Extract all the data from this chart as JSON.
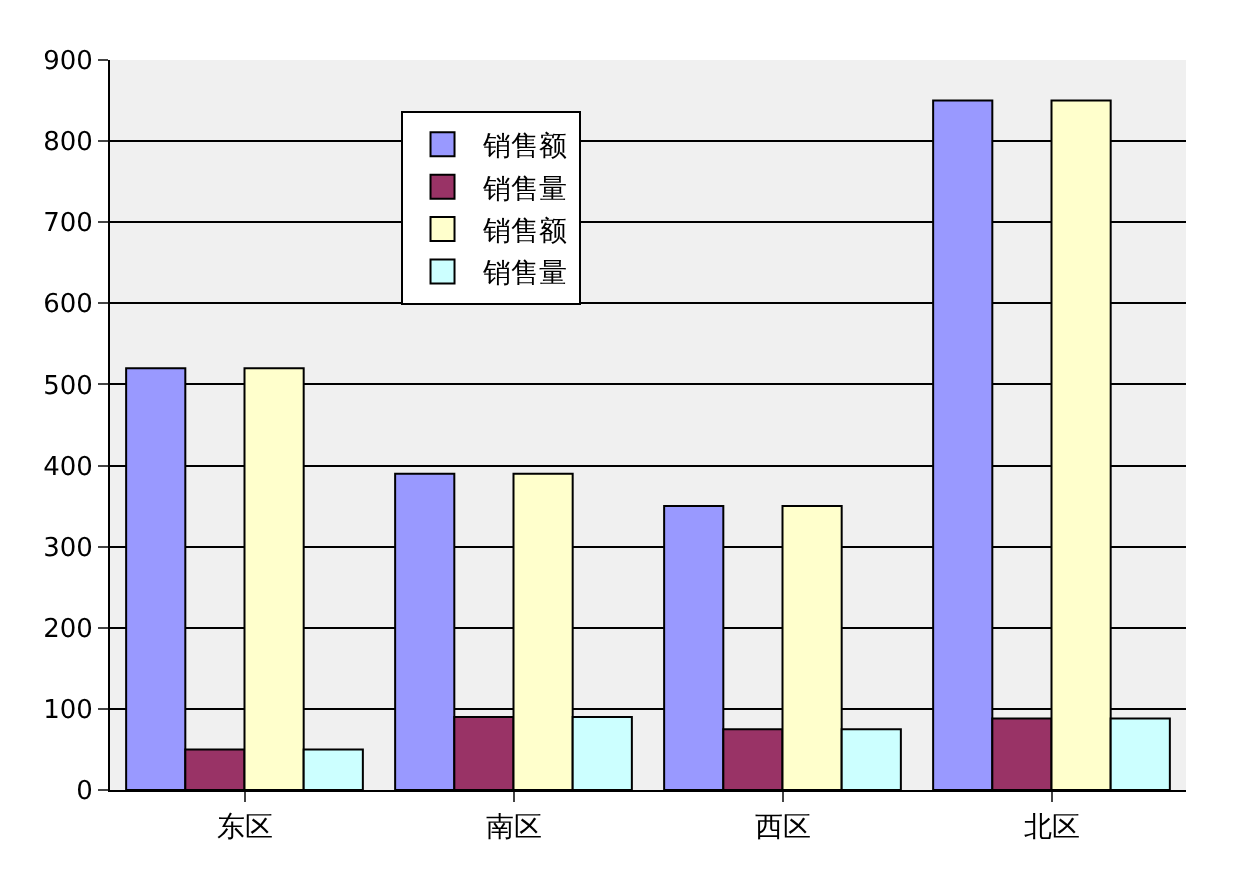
{
  "chart_data": {
    "type": "bar",
    "categories": [
      "东区",
      "南区",
      "西区",
      "北区"
    ],
    "series": [
      {
        "name": "销售额",
        "color": "#9999ff",
        "values": [
          520,
          390,
          350,
          850
        ]
      },
      {
        "name": "销售量",
        "color": "#993366",
        "values": [
          50,
          90,
          75,
          88
        ]
      },
      {
        "name": "销售额",
        "color": "#ffffcc",
        "values": [
          520,
          390,
          350,
          850
        ]
      },
      {
        "name": "销售量",
        "color": "#ccffff",
        "values": [
          50,
          90,
          75,
          88
        ]
      }
    ],
    "ylim": [
      0,
      900
    ],
    "yticks": [
      0,
      100,
      200,
      300,
      400,
      500,
      600,
      700,
      800,
      900
    ],
    "grid": "y",
    "legend": "top left"
  }
}
